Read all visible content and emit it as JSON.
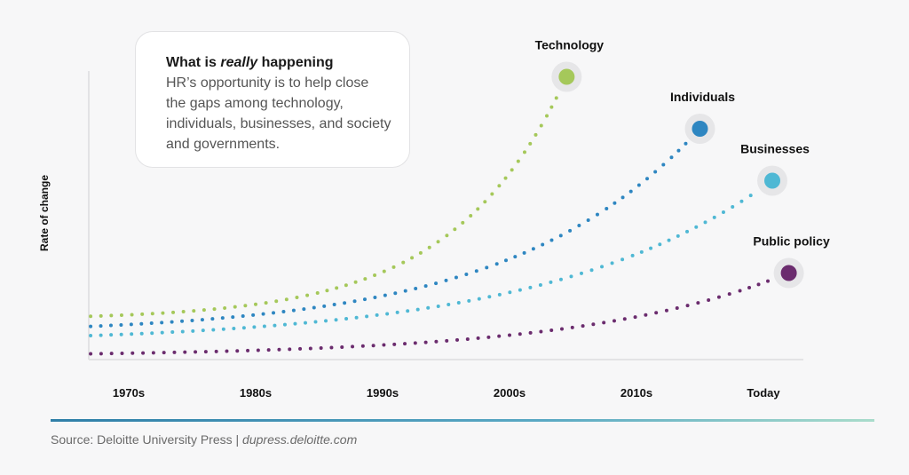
{
  "callout": {
    "title_pre": "What is ",
    "title_em": "really",
    "title_post": " happening",
    "body": "HR’s opportunity is to help close the gaps among technology, individuals, businesses, and society and governments."
  },
  "source": {
    "label": "Source: Deloitte University Press | ",
    "link": "dupress.deloitte.com"
  },
  "chart_data": {
    "type": "line",
    "title": "",
    "xlabel": "",
    "ylabel": "Rate of change",
    "x_ticks": [
      "1970s",
      "1980s",
      "1990s",
      "2000s",
      "2010s",
      "Today"
    ],
    "x_tick_years": [
      1970,
      1980,
      1990,
      2000,
      2010,
      2020
    ],
    "xlim": [
      1967,
      2024
    ],
    "ylim": [
      0,
      100
    ],
    "grid": false,
    "series": [
      {
        "name": "Technology",
        "color": "#a5c85a",
        "x_start": 1967,
        "x_end": 2004.5,
        "y_start": 15,
        "y_end": 98,
        "growth": 4.2
      },
      {
        "name": "Individuals",
        "color": "#2e86c1",
        "x_start": 1967,
        "x_end": 2015,
        "y_start": 11.5,
        "y_end": 80,
        "growth": 3.2
      },
      {
        "name": "Businesses",
        "color": "#4fb8d4",
        "x_start": 1967,
        "x_end": 2020.7,
        "y_start": 8.3,
        "y_end": 62,
        "growth": 3.0
      },
      {
        "name": "Public policy",
        "color": "#6b2c6e",
        "x_start": 1967,
        "x_end": 2022,
        "y_start": 2,
        "y_end": 30,
        "growth": 3.4
      }
    ]
  }
}
